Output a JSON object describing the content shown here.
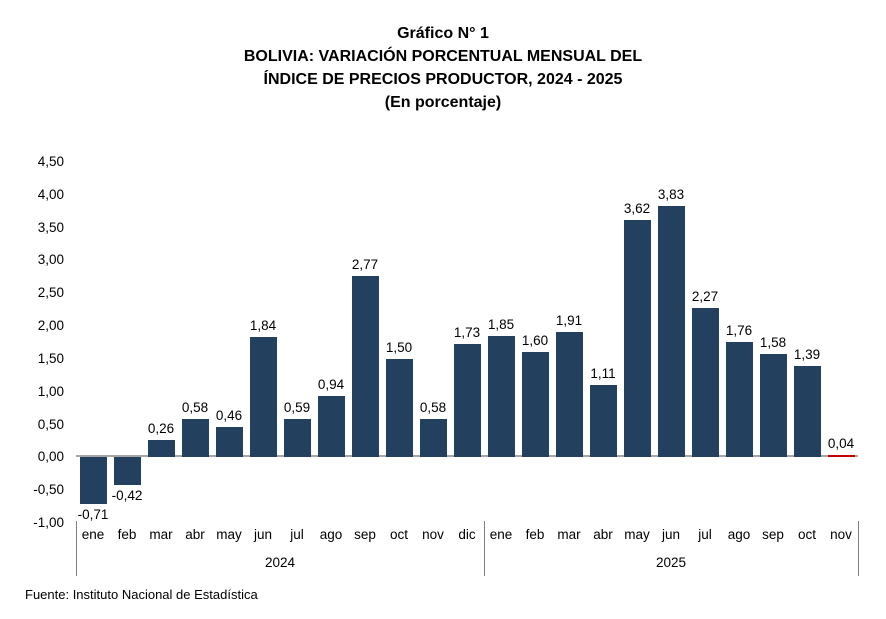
{
  "title": {
    "line1": "Gráfico N° 1",
    "line2": "BOLIVIA: VARIACIÓN PORCENTUAL MENSUAL DEL",
    "line3": "ÍNDICE DE PRECIOS PRODUCTOR, 2024 - 2025",
    "line4": "(En porcentaje)"
  },
  "footer": {
    "source": "Fuente: Instituto Nacional de Estadística"
  },
  "chart_data": {
    "type": "bar",
    "title": "Gráfico N° 1 — BOLIVIA: VARIACIÓN PORCENTUAL MENSUAL DEL ÍNDICE DE PRECIOS PRODUCTOR, 2024 - 2025 (En porcentaje)",
    "xlabel": "",
    "ylabel": "",
    "ylim": [
      -1.0,
      4.5
    ],
    "ytick_step": 0.5,
    "ytick_labels": [
      "4,50",
      "4,00",
      "3,50",
      "3,00",
      "2,50",
      "2,00",
      "1,50",
      "1,00",
      "0,50",
      "0,00",
      "-0,50",
      "-1,00"
    ],
    "grid": false,
    "legend": false,
    "categories": [
      "ene",
      "feb",
      "mar",
      "abr",
      "may",
      "jun",
      "jul",
      "ago",
      "sep",
      "oct",
      "nov",
      "dic",
      "ene",
      "feb",
      "mar",
      "abr",
      "may",
      "jun",
      "jul",
      "ago",
      "sep",
      "oct",
      "nov"
    ],
    "year_groups": [
      {
        "label": "2024",
        "count": 12
      },
      {
        "label": "2025",
        "count": 11
      }
    ],
    "values": [
      -0.71,
      -0.42,
      0.26,
      0.58,
      0.46,
      1.84,
      0.59,
      0.94,
      2.77,
      1.5,
      0.58,
      1.73,
      1.85,
      1.6,
      1.91,
      1.11,
      3.62,
      3.83,
      2.27,
      1.76,
      1.58,
      1.39,
      0.04
    ],
    "value_labels": [
      "-0,71",
      "-0,42",
      "0,26",
      "0,58",
      "0,46",
      "1,84",
      "0,59",
      "0,94",
      "2,77",
      "1,50",
      "0,58",
      "1,73",
      "1,85",
      "1,60",
      "1,91",
      "1,11",
      "3,62",
      "3,83",
      "2,27",
      "1,76",
      "1,58",
      "1,39",
      "0,04"
    ],
    "colors": {
      "bar": "#24405f",
      "last_bar": "#c00000",
      "axis_line": "#a6a6a6",
      "separator": "#7f7f7f",
      "text": "#000000"
    }
  }
}
